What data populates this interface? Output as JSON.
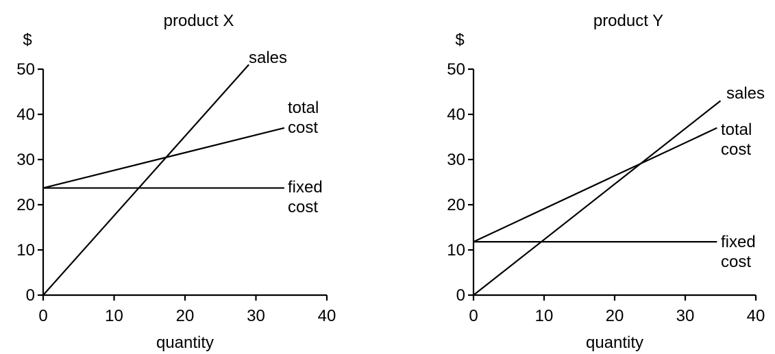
{
  "chart_data": [
    {
      "type": "line",
      "title": "product X",
      "ylabel": "$",
      "xlabel": "quantity",
      "xlim": [
        0,
        40
      ],
      "ylim": [
        0,
        50
      ],
      "xticks": [
        0,
        10,
        20,
        30,
        40
      ],
      "yticks": [
        0,
        10,
        20,
        30,
        40,
        50
      ],
      "grid": false,
      "legend": "none",
      "series": [
        {
          "label_lines": [
            "sales"
          ],
          "x": [
            0,
            29
          ],
          "y": [
            0,
            51
          ]
        },
        {
          "label_lines": [
            "total",
            "cost"
          ],
          "x": [
            0,
            34
          ],
          "y": [
            23.7,
            37
          ]
        },
        {
          "label_lines": [
            "fixed",
            "cost"
          ],
          "x": [
            0,
            34
          ],
          "y": [
            23.7,
            23.7
          ]
        }
      ]
    },
    {
      "type": "line",
      "title": "product Y",
      "ylabel": "$",
      "xlabel": "quantity",
      "xlim": [
        0,
        40
      ],
      "ylim": [
        0,
        50
      ],
      "xticks": [
        0,
        10,
        20,
        30,
        40
      ],
      "yticks": [
        0,
        10,
        20,
        30,
        40,
        50
      ],
      "grid": false,
      "legend": "none",
      "series": [
        {
          "label_lines": [
            "sales"
          ],
          "x": [
            0,
            35
          ],
          "y": [
            0,
            43
          ]
        },
        {
          "label_lines": [
            "total",
            "cost"
          ],
          "x": [
            0,
            34.5
          ],
          "y": [
            11.8,
            37
          ]
        },
        {
          "label_lines": [
            "fixed",
            "cost"
          ],
          "x": [
            0,
            34.5
          ],
          "y": [
            11.8,
            11.8
          ]
        }
      ]
    }
  ]
}
